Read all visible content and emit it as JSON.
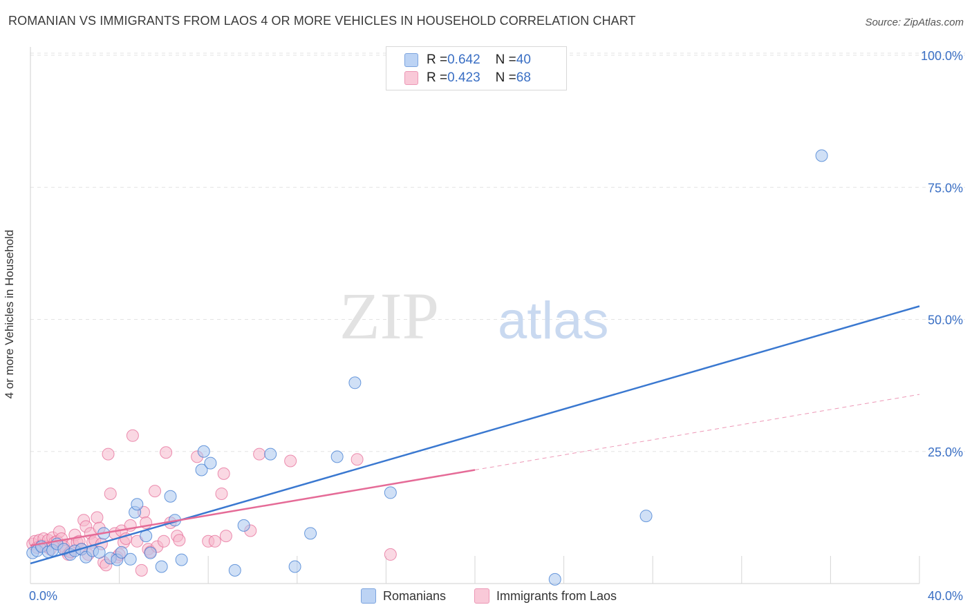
{
  "title": "ROMANIAN VS IMMIGRANTS FROM LAOS 4 OR MORE VEHICLES IN HOUSEHOLD CORRELATION CHART",
  "source": "Source: ZipAtlas.com",
  "watermark": {
    "zip": "ZIP",
    "atlas": "atlas"
  },
  "colors": {
    "blue": "#3a78d0",
    "blue_fill": "#a9c6ef",
    "pink": "#e56b97",
    "pink_fill": "#f6b8cc",
    "value_text": "#3a6fc4"
  },
  "legend_top": {
    "rows": [
      {
        "r_label": "R = ",
        "r_value": "0.642",
        "n_label": "N = ",
        "n_value": "40"
      },
      {
        "r_label": "R = ",
        "r_value": "0.423",
        "n_label": "N = ",
        "n_value": "68"
      }
    ]
  },
  "legend_bottom": {
    "items": [
      {
        "label": "Romanians"
      },
      {
        "label": "Immigrants from Laos"
      }
    ]
  },
  "chart_data": {
    "type": "scatter",
    "title": "ROMANIAN VS IMMIGRANTS FROM LAOS 4 OR MORE VEHICLES IN HOUSEHOLD CORRELATION CHART",
    "xlabel": "",
    "ylabel": "4 or more Vehicles in Household",
    "xlim": [
      0,
      40
    ],
    "ylim": [
      0,
      100
    ],
    "x_tick_labels": [
      "0.0%",
      "40.0%"
    ],
    "y_tick_labels": [
      "25.0%",
      "50.0%",
      "75.0%",
      "100.0%"
    ],
    "y_ticks": [
      25,
      50,
      75,
      100
    ],
    "grid": true,
    "legend": "top-center",
    "series": [
      {
        "name": "Romanians",
        "color": "#3a78d0",
        "points": [
          [
            0.1,
            5.8
          ],
          [
            0.3,
            6.2
          ],
          [
            0.5,
            7.0
          ],
          [
            0.8,
            6.0
          ],
          [
            1.0,
            6.3
          ],
          [
            1.2,
            7.5
          ],
          [
            1.5,
            6.5
          ],
          [
            1.8,
            5.5
          ],
          [
            2.0,
            6.2
          ],
          [
            2.3,
            6.5
          ],
          [
            2.5,
            5.0
          ],
          [
            2.8,
            6.2
          ],
          [
            3.1,
            5.9
          ],
          [
            3.3,
            9.5
          ],
          [
            3.6,
            4.8
          ],
          [
            3.9,
            4.5
          ],
          [
            4.1,
            5.9
          ],
          [
            4.5,
            4.6
          ],
          [
            4.7,
            13.5
          ],
          [
            4.8,
            15.0
          ],
          [
            5.2,
            9.0
          ],
          [
            5.4,
            5.8
          ],
          [
            5.9,
            3.2
          ],
          [
            6.3,
            16.5
          ],
          [
            6.5,
            12.0
          ],
          [
            6.8,
            4.5
          ],
          [
            7.7,
            21.5
          ],
          [
            7.8,
            25.0
          ],
          [
            8.1,
            22.8
          ],
          [
            9.2,
            2.5
          ],
          [
            9.6,
            11.0
          ],
          [
            10.8,
            24.5
          ],
          [
            11.9,
            3.2
          ],
          [
            12.6,
            9.5
          ],
          [
            13.8,
            24.0
          ],
          [
            14.6,
            38.0
          ],
          [
            16.2,
            17.2
          ],
          [
            23.6,
            0.8
          ],
          [
            27.7,
            12.8
          ],
          [
            35.6,
            81.0
          ]
        ]
      },
      {
        "name": "Immigrants from Laos",
        "color": "#e56b97",
        "points": [
          [
            0.1,
            7.5
          ],
          [
            0.2,
            8.0
          ],
          [
            0.3,
            6.8
          ],
          [
            0.4,
            8.2
          ],
          [
            0.5,
            7.2
          ],
          [
            0.6,
            8.5
          ],
          [
            0.7,
            7.0
          ],
          [
            0.8,
            8.2
          ],
          [
            0.9,
            6.5
          ],
          [
            1.0,
            8.7
          ],
          [
            1.1,
            7.8
          ],
          [
            1.2,
            8.0
          ],
          [
            1.3,
            9.8
          ],
          [
            1.4,
            8.5
          ],
          [
            1.5,
            7.0
          ],
          [
            1.6,
            6.2
          ],
          [
            1.7,
            5.5
          ],
          [
            1.8,
            6.0
          ],
          [
            1.9,
            7.5
          ],
          [
            2.0,
            9.2
          ],
          [
            2.1,
            7.8
          ],
          [
            2.2,
            8.0
          ],
          [
            2.3,
            6.5
          ],
          [
            2.4,
            12.0
          ],
          [
            2.5,
            10.8
          ],
          [
            2.6,
            5.5
          ],
          [
            2.7,
            9.5
          ],
          [
            2.8,
            7.8
          ],
          [
            2.9,
            8.2
          ],
          [
            3.0,
            12.5
          ],
          [
            3.1,
            10.5
          ],
          [
            3.2,
            7.5
          ],
          [
            3.3,
            4.0
          ],
          [
            3.4,
            3.5
          ],
          [
            3.5,
            24.5
          ],
          [
            3.6,
            17.0
          ],
          [
            3.8,
            9.5
          ],
          [
            3.9,
            5.0
          ],
          [
            4.0,
            5.5
          ],
          [
            4.1,
            10.0
          ],
          [
            4.2,
            7.8
          ],
          [
            4.3,
            8.5
          ],
          [
            4.5,
            11.0
          ],
          [
            4.6,
            28.0
          ],
          [
            4.8,
            8.0
          ],
          [
            5.0,
            2.5
          ],
          [
            5.1,
            13.5
          ],
          [
            5.2,
            11.5
          ],
          [
            5.3,
            6.5
          ],
          [
            5.4,
            6.0
          ],
          [
            5.6,
            17.5
          ],
          [
            5.7,
            7.0
          ],
          [
            6.0,
            8.0
          ],
          [
            6.1,
            24.8
          ],
          [
            6.3,
            11.5
          ],
          [
            6.6,
            9.0
          ],
          [
            6.7,
            8.2
          ],
          [
            7.5,
            24.0
          ],
          [
            8.0,
            8.0
          ],
          [
            8.3,
            8.0
          ],
          [
            8.6,
            17.0
          ],
          [
            8.7,
            20.8
          ],
          [
            8.8,
            9.0
          ],
          [
            9.9,
            10.0
          ],
          [
            10.3,
            24.5
          ],
          [
            11.7,
            23.2
          ],
          [
            14.7,
            23.5
          ],
          [
            16.2,
            5.5
          ]
        ]
      }
    ],
    "trendlines": [
      {
        "series": "Romanians",
        "x": [
          0,
          40
        ],
        "y": [
          3.8,
          52.5
        ],
        "style": "solid"
      },
      {
        "series": "Immigrants from Laos",
        "x": [
          0,
          20
        ],
        "y": [
          7.2,
          21.5
        ],
        "style": "solid"
      },
      {
        "series": "Immigrants from Laos",
        "x": [
          20,
          40
        ],
        "y": [
          21.5,
          35.8
        ],
        "style": "dashed"
      }
    ]
  }
}
